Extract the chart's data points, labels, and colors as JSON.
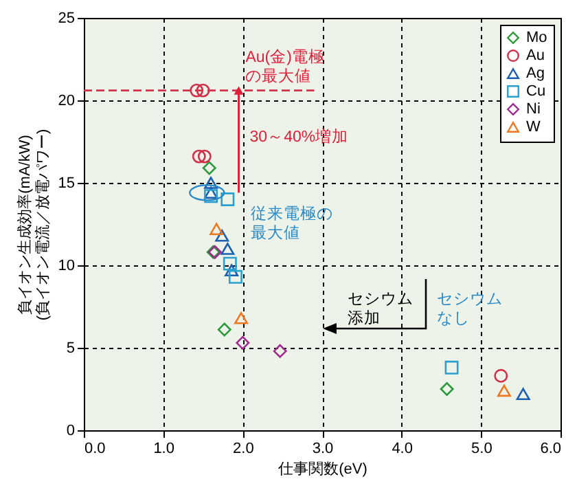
{
  "chart_data": {
    "type": "scatter",
    "xlabel": "仕事関数(eV)",
    "ylabel": "負イオン生成効率(mA/kW)\n(負イオン電流／放電パワー)",
    "xlim": [
      0,
      6
    ],
    "ylim": [
      0,
      25
    ],
    "xticks": [
      {
        "value": 0,
        "label": "0.0"
      },
      {
        "value": 1,
        "label": "1.0"
      },
      {
        "value": 2,
        "label": "2.0"
      },
      {
        "value": 3,
        "label": "3.0"
      },
      {
        "value": 4,
        "label": "4.0"
      },
      {
        "value": 5,
        "label": "5.0"
      },
      {
        "value": 6,
        "label": "6.0"
      }
    ],
    "yticks": [
      0,
      5,
      10,
      15,
      20,
      25
    ],
    "grid": true,
    "legend": "top right",
    "series": [
      {
        "name": "Mo",
        "color": "#2a9a3a",
        "marker": "diamond",
        "x": [
          1.58,
          1.63,
          1.77,
          4.57
        ],
        "values": [
          15.9,
          10.8,
          6.1,
          2.5
        ]
      },
      {
        "name": "Au",
        "color": "#d0304a",
        "marker": "circle",
        "x": [
          1.42,
          1.5,
          1.45,
          1.52,
          5.25
        ],
        "values": [
          20.6,
          20.6,
          16.6,
          16.6,
          3.3
        ]
      },
      {
        "name": "Ag",
        "color": "#1a5fb0",
        "marker": "triangle",
        "x": [
          1.6,
          1.6,
          1.74,
          1.81,
          1.86,
          5.53
        ],
        "values": [
          15.0,
          14.4,
          11.8,
          11.0,
          9.7,
          2.2
        ]
      },
      {
        "name": "Cu",
        "color": "#2aa0d0",
        "marker": "square",
        "x": [
          1.81,
          1.6,
          1.84,
          1.91,
          4.63
        ],
        "values": [
          14.0,
          14.2,
          10.1,
          9.3,
          3.8
        ]
      },
      {
        "name": "Ni",
        "color": "#a02a90",
        "marker": "diamond",
        "x": [
          1.65,
          2.0,
          2.47
        ],
        "values": [
          10.8,
          5.3,
          4.8
        ]
      },
      {
        "name": "W",
        "color": "#f07820",
        "marker": "triangle",
        "x": [
          1.67,
          1.98,
          5.29
        ],
        "values": [
          12.2,
          6.8,
          2.4
        ]
      },
      {
        "type": "line",
        "color": "#d0304a",
        "line_style": "dashed",
        "x": [
          0,
          2.9
        ],
        "values": [
          20.6,
          20.6
        ]
      }
    ],
    "annotations": [
      {
        "text": "Au(金)電極の最大値",
        "x": 2.9,
        "y": 20.6
      },
      {
        "text": "30～40%増加",
        "x": 1.95,
        "y": 20.6
      },
      {
        "text": "従来電極の最大値",
        "x": 1.55,
        "y": 14.4
      },
      "セシウム添加",
      "セシウムなし"
    ]
  }
}
